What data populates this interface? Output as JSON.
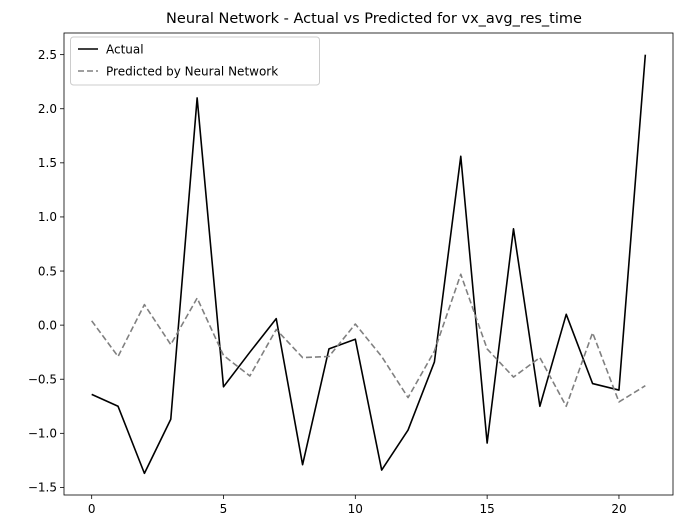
{
  "chart_data": {
    "type": "line",
    "title": "Neural Network - Actual vs Predicted for vx_avg_res_time",
    "xlabel": "",
    "ylabel": "",
    "x": [
      0,
      1,
      2,
      3,
      4,
      5,
      6,
      7,
      8,
      9,
      10,
      11,
      12,
      13,
      14,
      15,
      16,
      17,
      18,
      19,
      20,
      21
    ],
    "xlim": [
      -1.05,
      22.05
    ],
    "ylim": [
      -1.57,
      2.7
    ],
    "xticks": [
      0,
      5,
      10,
      15,
      20
    ],
    "xtick_labels": [
      "0",
      "5",
      "10",
      "15",
      "20"
    ],
    "yticks": [
      -1.5,
      -1.0,
      -0.5,
      0.0,
      0.5,
      1.0,
      1.5,
      2.0,
      2.5
    ],
    "ytick_labels": [
      "−1.5",
      "−1.0",
      "−0.5",
      "0.0",
      "0.5",
      "1.0",
      "1.5",
      "2.0",
      "2.5"
    ],
    "grid": false,
    "legend_position": "upper-left",
    "series": [
      {
        "name": "Actual",
        "color": "#000000",
        "style": "solid",
        "values": [
          -0.64,
          -0.75,
          -1.37,
          -0.87,
          2.1,
          -0.57,
          -0.25,
          0.06,
          -1.29,
          -0.22,
          -0.13,
          -1.34,
          -0.97,
          -0.34,
          1.56,
          -1.09,
          0.89,
          -0.75,
          0.1,
          -0.54,
          -0.6,
          2.5
        ]
      },
      {
        "name": "Predicted by Neural Network",
        "color": "#808080",
        "style": "dashed",
        "values": [
          0.04,
          -0.29,
          0.19,
          -0.18,
          0.25,
          -0.28,
          -0.47,
          -0.04,
          -0.3,
          -0.29,
          0.01,
          -0.29,
          -0.67,
          -0.24,
          0.47,
          -0.22,
          -0.48,
          -0.3,
          -0.75,
          -0.07,
          -0.71,
          -0.56
        ]
      }
    ]
  }
}
